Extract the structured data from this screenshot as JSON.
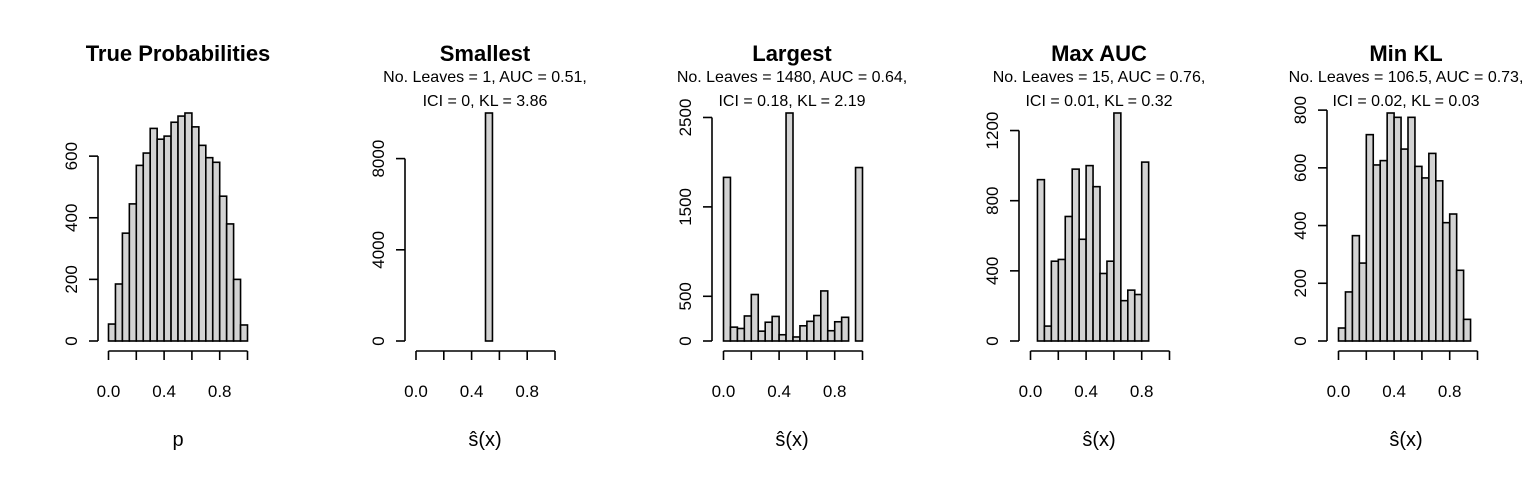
{
  "chart_data": [
    {
      "type": "bar",
      "title": "True Probabilities",
      "subtitle": [],
      "xlabel": "p",
      "ylabel": "",
      "xlim": [
        0,
        1
      ],
      "ylim": [
        0,
        740
      ],
      "xticks": [
        "0.0",
        "0.4",
        "0.8"
      ],
      "yticks": [
        "0",
        "200",
        "400",
        "600"
      ],
      "bin_width": 0.05,
      "bin_start": 0,
      "values": [
        55,
        185,
        350,
        445,
        570,
        610,
        690,
        655,
        665,
        710,
        730,
        740,
        695,
        635,
        595,
        580,
        470,
        380,
        200,
        52
      ]
    },
    {
      "type": "bar",
      "title": "Smallest",
      "subtitle": [
        "No. Leaves = 1, AUC = 0.51,",
        "ICI = 0, KL = 3.86"
      ],
      "xlabel": "ŝ(x)",
      "ylabel": "",
      "xlim": [
        0,
        1
      ],
      "ylim": [
        0,
        10000
      ],
      "xticks": [
        "0.0",
        "0.4",
        "0.8"
      ],
      "yticks": [
        "0",
        "4000",
        "8000"
      ],
      "bin_width": 0.05,
      "bin_start": 0,
      "values": [
        0,
        0,
        0,
        0,
        0,
        0,
        0,
        0,
        0,
        0,
        10000,
        0,
        0,
        0,
        0,
        0,
        0,
        0,
        0,
        0
      ]
    },
    {
      "type": "bar",
      "title": "Largest",
      "subtitle": [
        "No. Leaves = 1480, AUC = 0.64,",
        "ICI = 0.18, KL = 2.19"
      ],
      "xlabel": "ŝ(x)",
      "ylabel": "",
      "xlim": [
        0,
        1
      ],
      "ylim": [
        0,
        2550
      ],
      "xticks": [
        "0.0",
        "0.4",
        "0.8"
      ],
      "yticks": [
        "0",
        "500",
        "1500",
        "2500"
      ],
      "bin_width": 0.05,
      "bin_start": 0,
      "values": [
        1830,
        155,
        140,
        280,
        520,
        110,
        210,
        275,
        70,
        2550,
        45,
        170,
        220,
        285,
        560,
        115,
        215,
        265,
        0,
        1940
      ]
    },
    {
      "type": "bar",
      "title": "Max AUC",
      "subtitle": [
        "No. Leaves = 15, AUC = 0.76,",
        "ICI = 0.01, KL = 0.32"
      ],
      "xlabel": "ŝ(x)",
      "ylabel": "",
      "xlim": [
        0,
        1
      ],
      "ylim": [
        0,
        1300
      ],
      "xticks": [
        "0.0",
        "0.4",
        "0.8"
      ],
      "yticks": [
        "0",
        "400",
        "800",
        "1200"
      ],
      "bin_width": 0.05,
      "bin_start": 0.05,
      "values": [
        920,
        85,
        455,
        465,
        710,
        980,
        580,
        1000,
        880,
        385,
        455,
        1300,
        230,
        290,
        265,
        1020
      ]
    },
    {
      "type": "bar",
      "title": "Min KL",
      "subtitle": [
        "No. Leaves = 106.5, AUC = 0.73,",
        "ICI = 0.02, KL = 0.03"
      ],
      "xlabel": "ŝ(x)",
      "ylabel": "",
      "xlim": [
        0,
        1
      ],
      "ylim": [
        0,
        790
      ],
      "xticks": [
        "0.0",
        "0.4",
        "0.8"
      ],
      "yticks": [
        "0",
        "200",
        "400",
        "600",
        "800"
      ],
      "bin_width": 0.05,
      "bin_start": 0,
      "values": [
        45,
        170,
        365,
        270,
        715,
        610,
        625,
        790,
        775,
        665,
        775,
        605,
        565,
        650,
        555,
        410,
        440,
        245,
        75
      ]
    }
  ]
}
